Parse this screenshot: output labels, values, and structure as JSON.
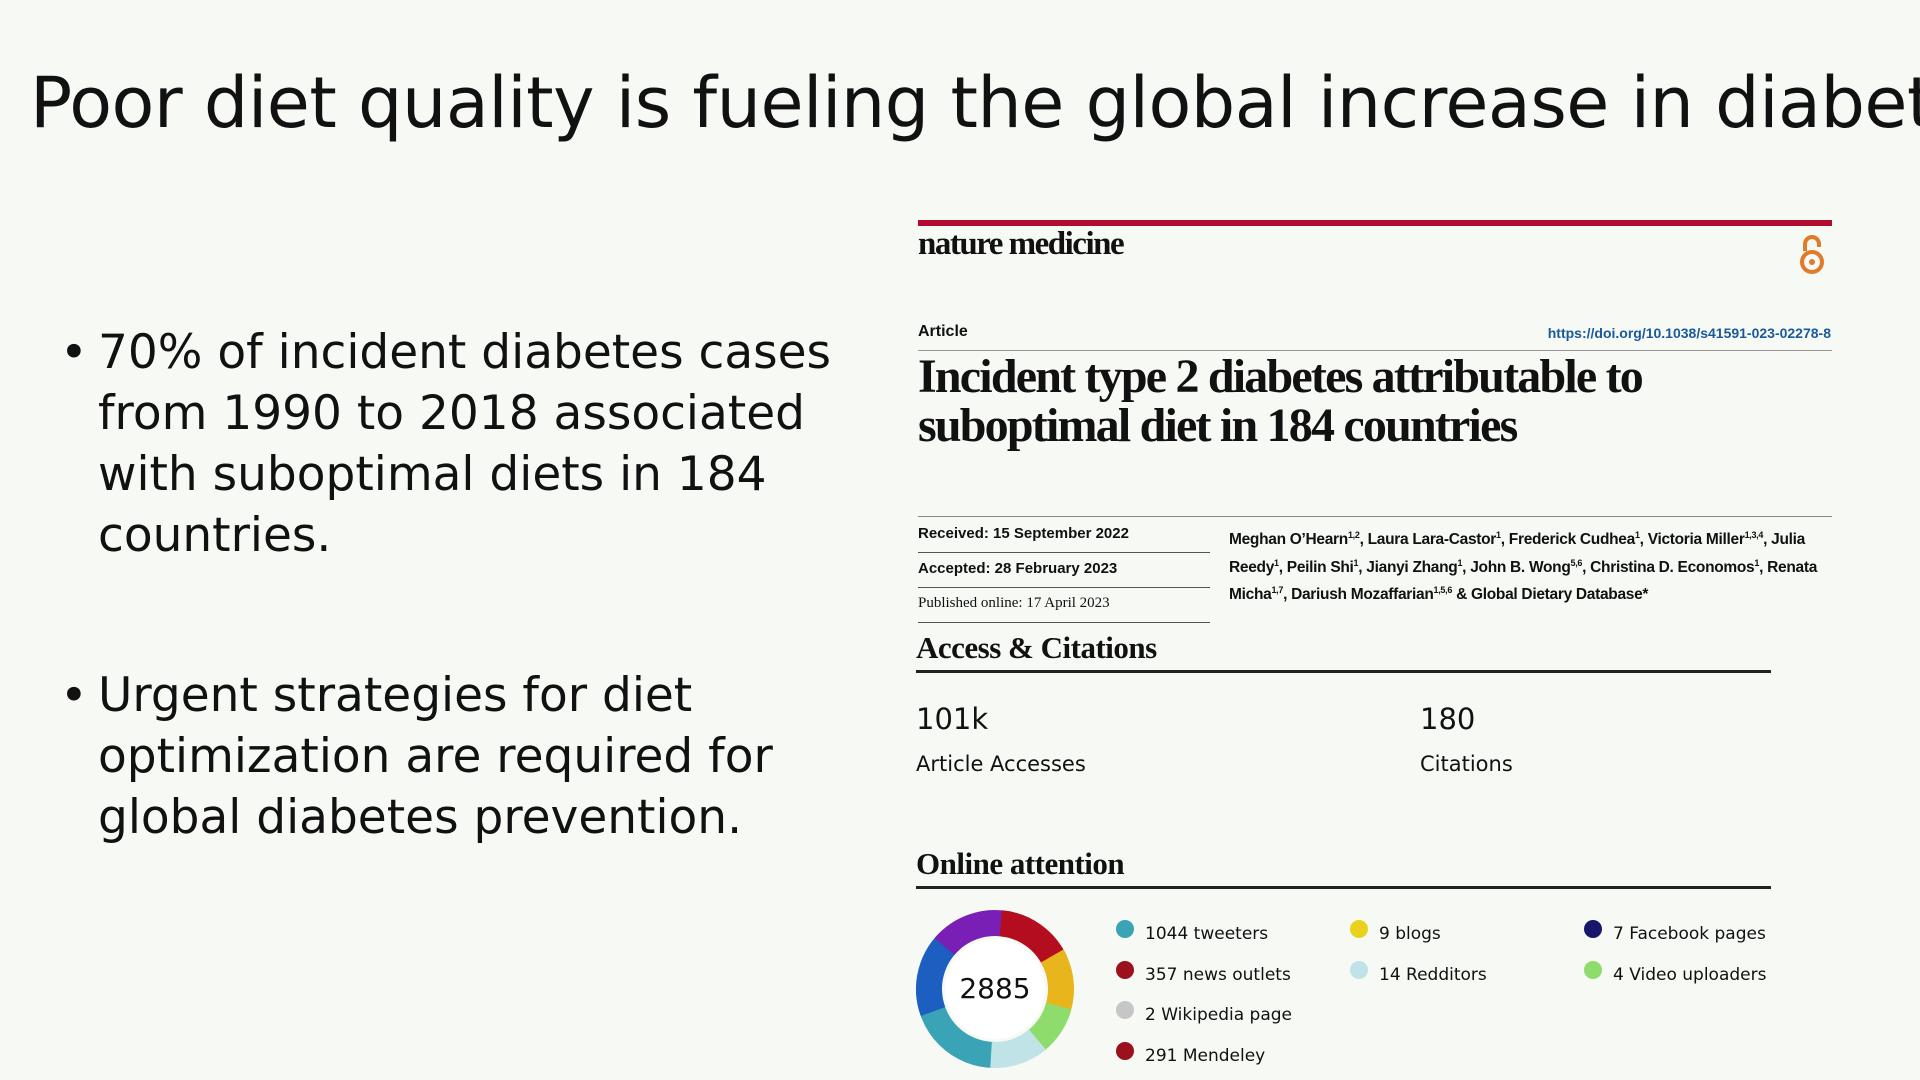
{
  "slide": {
    "title": "Poor diet quality is fueling the global increase in diabetes",
    "bullets": [
      "70% of incident diabetes cases from 1990 to 2018 associated with suboptimal diets in 184 countries.",
      "Urgent strategies for diet optimization are required for global diabetes prevention."
    ]
  },
  "paper": {
    "journal": "nature medicine",
    "article_type": "Article",
    "doi": "https://doi.org/10.1038/s41591-023-02278-8",
    "title": "Incident type 2 diabetes attributable to suboptimal diet in 184 countries",
    "dates": [
      "Received: 15 September 2022",
      "Accepted: 28 February 2023",
      "Published online: 17 April 2023"
    ],
    "authors": [
      {
        "name": "Meghan O’Hearn",
        "sup": "1,2"
      },
      {
        "name": "Laura Lara-Castor",
        "sup": "1"
      },
      {
        "name": "Frederick Cudhea",
        "sup": "1"
      },
      {
        "name": "Victoria Miller",
        "sup": "1,3,4"
      },
      {
        "name": "Julia Reedy",
        "sup": "1"
      },
      {
        "name": "Peilin Shi",
        "sup": "1"
      },
      {
        "name": "Jianyi Zhang",
        "sup": "1"
      },
      {
        "name": "John B. Wong",
        "sup": "5,6"
      },
      {
        "name": "Christina D. Economos",
        "sup": "1"
      },
      {
        "name": "Renata Micha",
        "sup": "1,7"
      },
      {
        "name": "Dariush Mozaffarian",
        "sup": "1,5,6"
      }
    ],
    "separator": ",",
    "conjunction": "&",
    "group_author": "Global Dietary Database*"
  },
  "metrics": {
    "heading": "Access & Citations",
    "items": [
      {
        "value": "101k",
        "label": "Article Accesses"
      },
      {
        "value": "180",
        "label": "Citations"
      }
    ]
  },
  "attention": {
    "heading": "Online attention",
    "score": "2885",
    "sources": [
      {
        "text": "1044 tweeters",
        "color": "#3aa3b6"
      },
      {
        "text": "357 news outlets",
        "color": "#9b111c"
      },
      {
        "text": "2 Wikipedia page",
        "color": "#c6c6c6"
      },
      {
        "text": "291 Mendeley",
        "color": "#9b111c"
      },
      {
        "text": "9 blogs",
        "color": "#e8d21d"
      },
      {
        "text": "14 Redditors",
        "color": "#bfe3e6"
      },
      {
        "text": "7 Facebook pages",
        "color": "#16176b"
      },
      {
        "text": "4 Video uploaders",
        "color": "#8edc6b"
      }
    ]
  }
}
